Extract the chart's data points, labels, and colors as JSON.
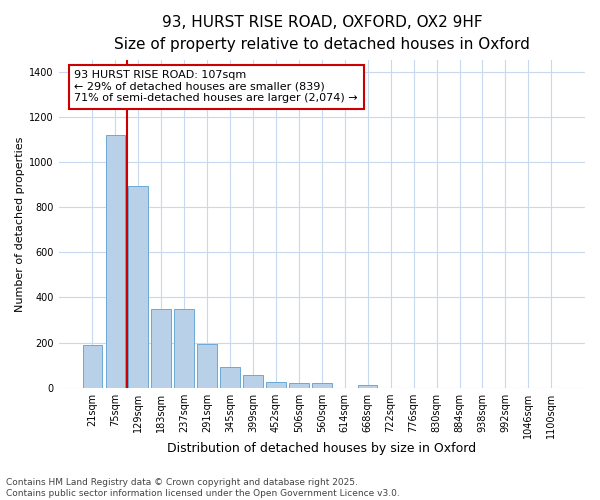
{
  "title_line1": "93, HURST RISE ROAD, OXFORD, OX2 9HF",
  "title_line2": "Size of property relative to detached houses in Oxford",
  "xlabel": "Distribution of detached houses by size in Oxford",
  "ylabel": "Number of detached properties",
  "categories": [
    "21sqm",
    "75sqm",
    "129sqm",
    "183sqm",
    "237sqm",
    "291sqm",
    "345sqm",
    "399sqm",
    "452sqm",
    "506sqm",
    "560sqm",
    "614sqm",
    "668sqm",
    "722sqm",
    "776sqm",
    "830sqm",
    "884sqm",
    "938sqm",
    "992sqm",
    "1046sqm",
    "1100sqm"
  ],
  "values": [
    190,
    1120,
    895,
    350,
    350,
    195,
    90,
    55,
    25,
    20,
    20,
    0,
    10,
    0,
    0,
    0,
    0,
    0,
    0,
    0,
    0
  ],
  "bar_color": "#b8d0e8",
  "bar_edge_color": "#6aaad4",
  "vline_color": "#cc0000",
  "vline_x": 1.5,
  "annotation_text": "93 HURST RISE ROAD: 107sqm\n← 29% of detached houses are smaller (839)\n71% of semi-detached houses are larger (2,074) →",
  "annotation_box_color": "#cc0000",
  "ylim": [
    0,
    1450
  ],
  "yticks": [
    0,
    200,
    400,
    600,
    800,
    1000,
    1200,
    1400
  ],
  "background_color": "#ffffff",
  "grid_color": "#c8d8ee",
  "footer_line1": "Contains HM Land Registry data © Crown copyright and database right 2025.",
  "footer_line2": "Contains public sector information licensed under the Open Government Licence v3.0.",
  "title_fontsize": 11,
  "subtitle_fontsize": 9.5,
  "annotation_fontsize": 8,
  "footer_fontsize": 6.5,
  "tick_fontsize": 7,
  "ylabel_fontsize": 8,
  "xlabel_fontsize": 9
}
